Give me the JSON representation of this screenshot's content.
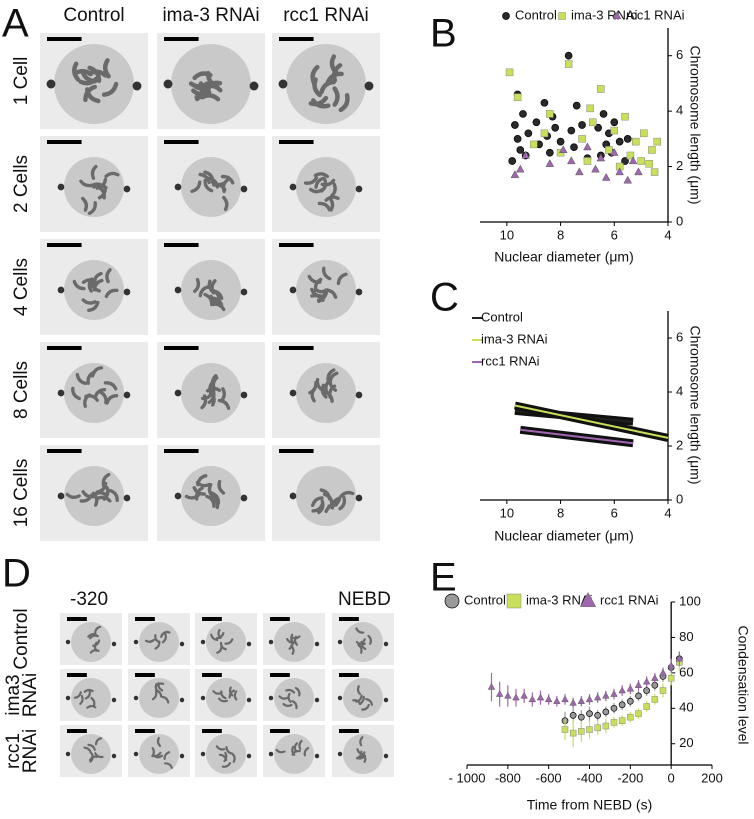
{
  "panels": {
    "A": {
      "letter": "A",
      "columns": [
        "Control",
        "ima-3 RNAi",
        "rcc1 RNAi"
      ],
      "rows": [
        "1 Cell",
        "2 Cells",
        "4 Cells",
        "8 Cells",
        "16 Cells"
      ]
    },
    "D": {
      "letter": "D",
      "time_start": "-320",
      "time_end": "NEBD",
      "rows": [
        [
          "Control"
        ],
        [
          "ima3",
          "RNAi"
        ],
        [
          "rcc1",
          "RNAi"
        ]
      ]
    }
  },
  "chart_data": [
    {
      "type": "scatter",
      "panel_label": "B",
      "xlabel": "Nuclear diameter (μm)",
      "ylabel": "Chromosome length (μm)",
      "xlim": [
        11,
        4
      ],
      "xticks": [
        10,
        8,
        6,
        4
      ],
      "ylim": [
        0,
        7
      ],
      "yticks": [
        0,
        2,
        4,
        6
      ],
      "series": [
        {
          "name": "Control",
          "color": "#2a2a2a",
          "marker": "circle",
          "x": [
            9.8,
            9.7,
            9.6,
            9.6,
            9.5,
            9.4,
            9.3,
            9.2,
            8.9,
            8.8,
            8.6,
            8.5,
            8.4,
            8.3,
            8.2,
            8.0,
            7.7,
            7.6,
            7.5,
            7.4,
            7.2,
            7.0,
            6.6,
            6.5,
            6.4,
            6.3,
            6.2,
            6.1,
            6.0,
            5.8,
            5.6,
            5.5
          ],
          "values": [
            2.2,
            3.5,
            3.0,
            4.6,
            2.6,
            3.9,
            2.4,
            3.2,
            3.6,
            2.8,
            4.3,
            3.1,
            2.5,
            3.8,
            3.4,
            2.9,
            6.0,
            3.3,
            2.7,
            4.2,
            3.5,
            2.3,
            3.4,
            2.4,
            3.9,
            2.8,
            3.2,
            2.5,
            3.6,
            2.9,
            2.2,
            3.0
          ]
        },
        {
          "name": "ima-3 RNAi",
          "color": "#c8df5a",
          "marker": "square",
          "x": [
            9.9,
            9.6,
            9.0,
            8.6,
            8.0,
            7.7,
            7.2,
            7.0,
            6.8,
            6.5,
            6.2,
            6.0,
            5.8,
            5.6,
            5.4,
            5.2,
            5.0,
            4.9,
            4.7,
            4.6,
            4.5,
            4.4,
            8.4,
            6.9
          ],
          "values": [
            5.4,
            4.5,
            2.8,
            3.2,
            2.5,
            5.7,
            3.0,
            2.2,
            3.6,
            4.8,
            2.6,
            3.3,
            2.0,
            3.8,
            2.4,
            2.9,
            2.2,
            3.2,
            2.1,
            2.6,
            1.8,
            2.9,
            3.9,
            4.1
          ]
        },
        {
          "name": "rcc1 RNAi",
          "color": "#a066b0",
          "marker": "triangle",
          "x": [
            9.7,
            9.5,
            9.3,
            8.4,
            7.9,
            7.6,
            7.3,
            7.0,
            6.7,
            6.5,
            6.3,
            6.0,
            5.8,
            5.5,
            5.3,
            5.1
          ],
          "values": [
            1.7,
            1.9,
            2.4,
            2.1,
            2.6,
            2.2,
            1.8,
            2.7,
            1.9,
            2.3,
            1.6,
            2.5,
            1.8,
            1.5,
            2.2,
            1.8
          ]
        }
      ]
    },
    {
      "type": "line",
      "panel_label": "C",
      "xlabel": "Nuclear diameter (μm)",
      "ylabel": "Chromosome length (μm)",
      "xlim": [
        11,
        4
      ],
      "xticks": [
        10,
        8,
        6,
        4
      ],
      "ylim": [
        0,
        7
      ],
      "yticks": [
        0,
        2,
        4,
        6
      ],
      "series": [
        {
          "name": "Control",
          "color": "#222222",
          "x": [
            9.7,
            5.3
          ],
          "values": [
            3.3,
            2.9
          ]
        },
        {
          "name": "ima-3 RNAi",
          "color": "#c8df5a",
          "x": [
            9.7,
            4.0
          ],
          "values": [
            3.5,
            2.3
          ]
        },
        {
          "name": "rcc1 RNAi",
          "color": "#a066b0",
          "x": [
            9.5,
            5.3
          ],
          "values": [
            2.6,
            2.1
          ]
        }
      ]
    },
    {
      "type": "errorbar",
      "panel_label": "E",
      "xlabel": "Time from NEBD (s)",
      "ylabel": "Condensation level",
      "xlim": [
        -1000,
        200
      ],
      "xticks": [
        {
          "value": -1000,
          "label": "- 1000"
        },
        -800,
        -600,
        -400,
        -200,
        0,
        200
      ],
      "ylim": [
        8,
        100
      ],
      "yticks": [
        20,
        40,
        60,
        80,
        100
      ],
      "series": [
        {
          "name": "Control",
          "color": "#9a9a9a",
          "marker": "circle",
          "x": [
            -520,
            -480,
            -440,
            -400,
            -360,
            -320,
            -280,
            -240,
            -200,
            -160,
            -120,
            -80,
            -40,
            0,
            40
          ],
          "values": [
            33,
            36,
            35,
            37,
            36,
            38,
            40,
            42,
            44,
            47,
            50,
            53,
            58,
            63,
            68
          ],
          "errors": [
            5,
            4,
            4,
            4,
            3,
            3,
            3,
            3,
            3,
            3,
            3,
            3,
            3,
            4,
            4
          ]
        },
        {
          "name": "ima-3 RNAi",
          "color": "#c8df5a",
          "marker": "square",
          "x": [
            -520,
            -480,
            -440,
            -400,
            -360,
            -320,
            -280,
            -240,
            -200,
            -160,
            -120,
            -80,
            -40,
            0,
            40
          ],
          "values": [
            28,
            26,
            27,
            28,
            29,
            30,
            32,
            33,
            35,
            37,
            41,
            45,
            50,
            57,
            66
          ],
          "errors": [
            6,
            8,
            6,
            5,
            4,
            4,
            3,
            3,
            3,
            3,
            3,
            3,
            4,
            4,
            5
          ]
        },
        {
          "name": "rcc1 RNAi",
          "color": "#a066b0",
          "marker": "triangle",
          "x": [
            -880,
            -840,
            -800,
            -760,
            -720,
            -680,
            -640,
            -600,
            -560,
            -520,
            -480,
            -440,
            -400,
            -360,
            -320,
            -280,
            -240,
            -200,
            -160,
            -120,
            -80,
            -40,
            0,
            40
          ],
          "values": [
            52,
            48,
            47,
            46,
            47,
            45,
            46,
            45,
            44,
            45,
            43,
            44,
            45,
            46,
            47,
            48,
            50,
            51,
            53,
            55,
            57,
            60,
            64,
            68
          ],
          "errors": [
            8,
            7,
            6,
            5,
            4,
            4,
            4,
            3,
            3,
            3,
            3,
            3,
            3,
            3,
            3,
            3,
            3,
            3,
            3,
            3,
            3,
            3,
            4,
            4
          ]
        }
      ]
    }
  ]
}
